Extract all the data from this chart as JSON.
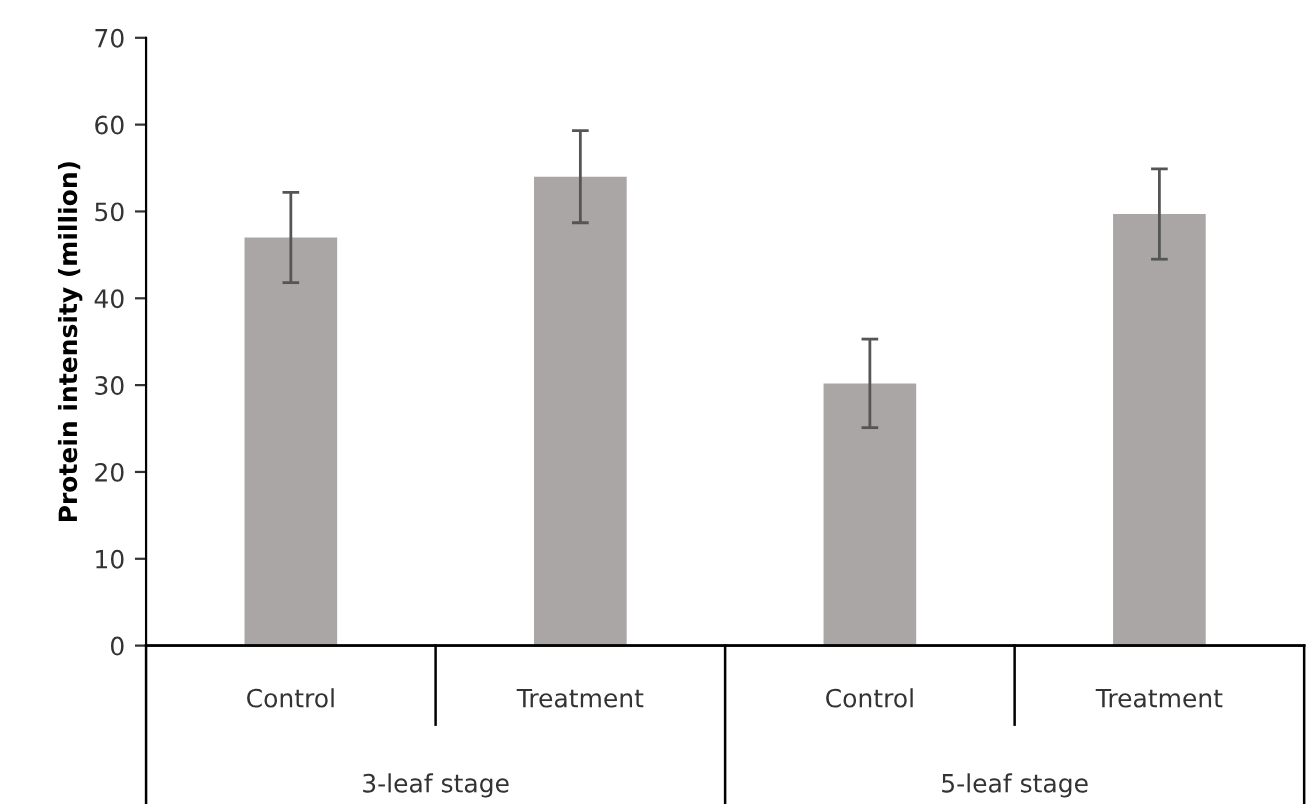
{
  "chart_data": {
    "type": "bar",
    "ylabel": "Protein intensity (million)",
    "categories": [
      "Control",
      "Treatment",
      "Control",
      "Treatment"
    ],
    "values": [
      47,
      54,
      30.2,
      49.7
    ],
    "errors": [
      5.2,
      5.3,
      5.1,
      5.2
    ],
    "color": "#aaa6a5",
    "ylim": [
      0,
      70
    ],
    "yticks": [
      0,
      10,
      20,
      30,
      40,
      50,
      60,
      70
    ],
    "grid": false,
    "annotations": [
      "3-leaf stage",
      "5-leaf stage"
    ]
  }
}
